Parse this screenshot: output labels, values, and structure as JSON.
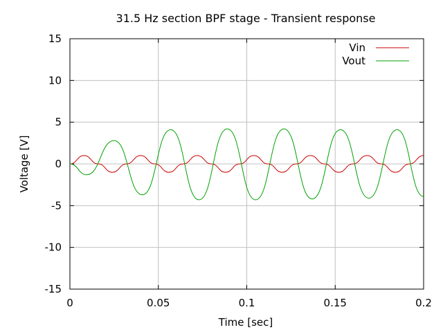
{
  "chart_data": {
    "type": "line",
    "title": "31.5 Hz section BPF stage - Transient response",
    "xlabel": "Time [sec]",
    "ylabel": "Voltage [V]",
    "xlim": [
      0,
      0.2
    ],
    "ylim": [
      -15,
      15
    ],
    "xticks": [
      "0",
      "0.05",
      "0.1",
      "0.15",
      "0.2"
    ],
    "yticks": [
      "-15",
      "-10",
      "-5",
      "0",
      "5",
      "10",
      "15"
    ],
    "grid": true,
    "legend_position": "top-right",
    "series": [
      {
        "name": "Vin",
        "color": "#cc0000",
        "x": [
          0,
          0.008,
          0.016,
          0.024,
          0.032,
          0.04,
          0.048,
          0.056,
          0.064,
          0.072,
          0.08,
          0.088,
          0.096,
          0.104,
          0.112,
          0.12,
          0.128,
          0.136,
          0.144,
          0.152,
          0.16,
          0.168,
          0.176,
          0.184,
          0.192,
          0.2
        ],
        "values": [
          0,
          1.0,
          0,
          -1.0,
          0,
          1.0,
          0,
          -1.0,
          0,
          1.0,
          0,
          -1.0,
          0,
          1.0,
          0,
          -1.0,
          0,
          1.0,
          0,
          -1.0,
          0,
          1.0,
          0,
          -1.0,
          0,
          1.0
        ]
      },
      {
        "name": "Vout",
        "color": "#00a000",
        "x": [
          0,
          0.0095,
          0.025,
          0.041,
          0.057,
          0.073,
          0.089,
          0.105,
          0.121,
          0.137,
          0.153,
          0.169,
          0.185,
          0.2
        ],
        "values": [
          0,
          -1.3,
          2.8,
          -3.7,
          4.1,
          -4.3,
          4.2,
          -4.3,
          4.2,
          -4.2,
          4.1,
          -4.1,
          4.1,
          -3.9
        ]
      }
    ]
  }
}
